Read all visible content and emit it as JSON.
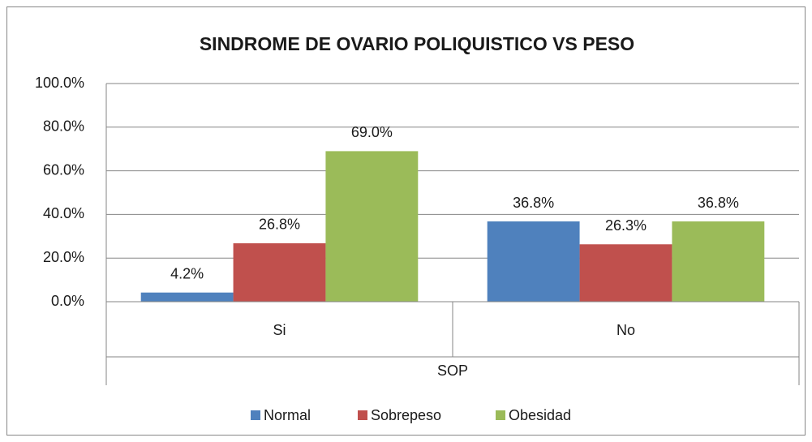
{
  "chart_data": {
    "type": "bar",
    "title": "SINDROME DE OVARIO POLIQUISTICO VS PESO",
    "x_label": "SOP",
    "categories": [
      "Si",
      "No"
    ],
    "series": [
      {
        "name": "Normal",
        "color": "#4f81bd",
        "values": [
          4.2,
          36.8
        ],
        "value_labels": [
          "4.2%",
          "36.8%"
        ]
      },
      {
        "name": "Sobrepeso",
        "color": "#c0504d",
        "values": [
          26.8,
          26.3
        ],
        "value_labels": [
          "26.8%",
          "26.3%"
        ]
      },
      {
        "name": "Obesidad",
        "color": "#9bbb59",
        "values": [
          69.0,
          36.8
        ],
        "value_labels": [
          "69.0%",
          "36.8%"
        ]
      }
    ],
    "ylim": [
      0,
      100
    ],
    "yticks": [
      {
        "value": 0,
        "label": "0.0%"
      },
      {
        "value": 20,
        "label": "20.0%"
      },
      {
        "value": 40,
        "label": "40.0%"
      },
      {
        "value": 60,
        "label": "60.0%"
      },
      {
        "value": 80,
        "label": "80.0%"
      },
      {
        "value": 100,
        "label": "100.0%"
      }
    ],
    "grid": true,
    "legend": "bottom"
  }
}
